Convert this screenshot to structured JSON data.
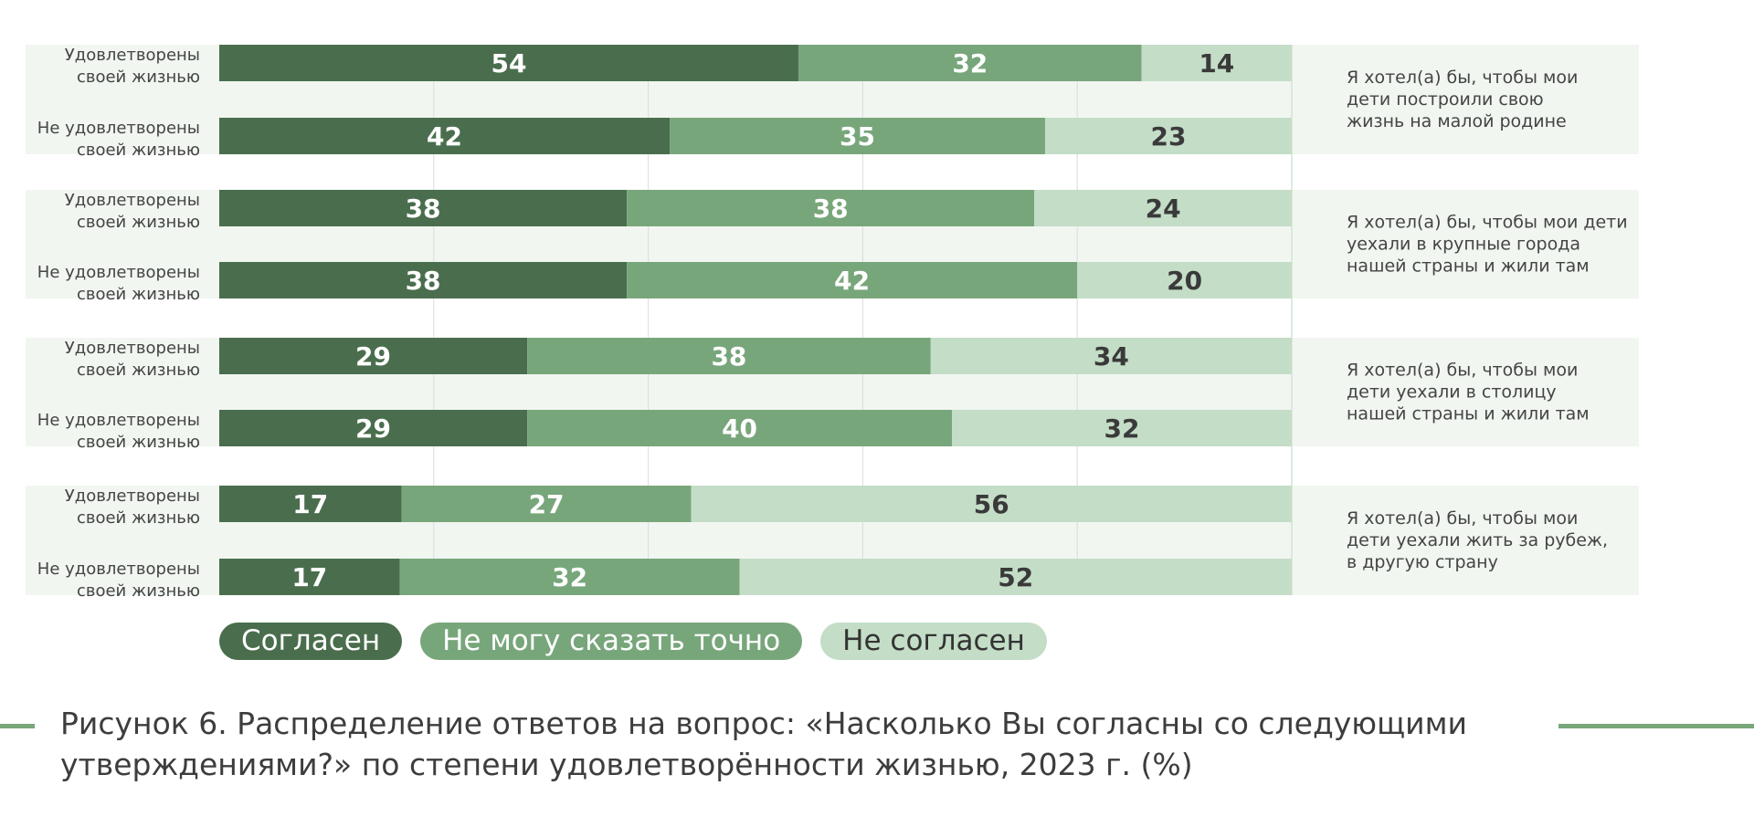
{
  "chart_data": {
    "type": "bar",
    "orientation": "horizontal",
    "stacked": true,
    "xlim": [
      0,
      100
    ],
    "grid": true,
    "series_names": [
      "Согласен",
      "Не могу сказать точно",
      "Не согласен"
    ],
    "colors": [
      "#4a6e4d",
      "#78a67b",
      "#c4ddc7"
    ],
    "band_color": "#f1f6f1",
    "groups": [
      {
        "statement": "Я хотел(а) бы, чтобы мои\nдети построили свою\nжизнь на малой родине",
        "rows": [
          {
            "label": "Удовлетворены\nсвоей жизнью",
            "values": [
              54,
              32,
              14
            ]
          },
          {
            "label": "Не удовлетворены\nсвоей жизнью",
            "values": [
              42,
              35,
              23
            ]
          }
        ]
      },
      {
        "statement": "Я хотел(а) бы, чтобы мои дети\nуехали в крупные города\nнашей страны и жили там",
        "rows": [
          {
            "label": "Удовлетворены\nсвоей жизнью",
            "values": [
              38,
              38,
              24
            ]
          },
          {
            "label": "Не удовлетворены\nсвоей жизнью",
            "values": [
              38,
              42,
              20
            ]
          }
        ]
      },
      {
        "statement": "Я хотел(а) бы, чтобы мои\nдети уехали в столицу\nнашей страны и жили там",
        "rows": [
          {
            "label": "Удовлетворены\nсвоей жизнью",
            "values": [
              29,
              38,
              34
            ]
          },
          {
            "label": "Не удовлетворены\nсвоей жизнью",
            "values": [
              29,
              40,
              32
            ]
          }
        ]
      },
      {
        "statement": "Я хотел(а) бы, чтобы мои\nдети уехали жить за рубеж,\nв другую страну",
        "rows": [
          {
            "label": "Удовлетворены\nсвоей жизнью",
            "values": [
              17,
              27,
              56
            ]
          },
          {
            "label": "Не удовлетворены\nсвоей жизнью",
            "values": [
              17,
              32,
              52
            ]
          }
        ]
      }
    ]
  },
  "legend": {
    "agree": "Согласен",
    "unsure": "Не могу сказать точно",
    "disagree": "Не согласен"
  },
  "caption": {
    "line1": "Рисунок 6. Распределение ответов на вопрос: «Насколько Вы согласны со следующими",
    "line2": "утверждениями?» по степени удовлетворённости жизнью, 2023 г. (%)"
  },
  "accent_color": "#78a67b"
}
